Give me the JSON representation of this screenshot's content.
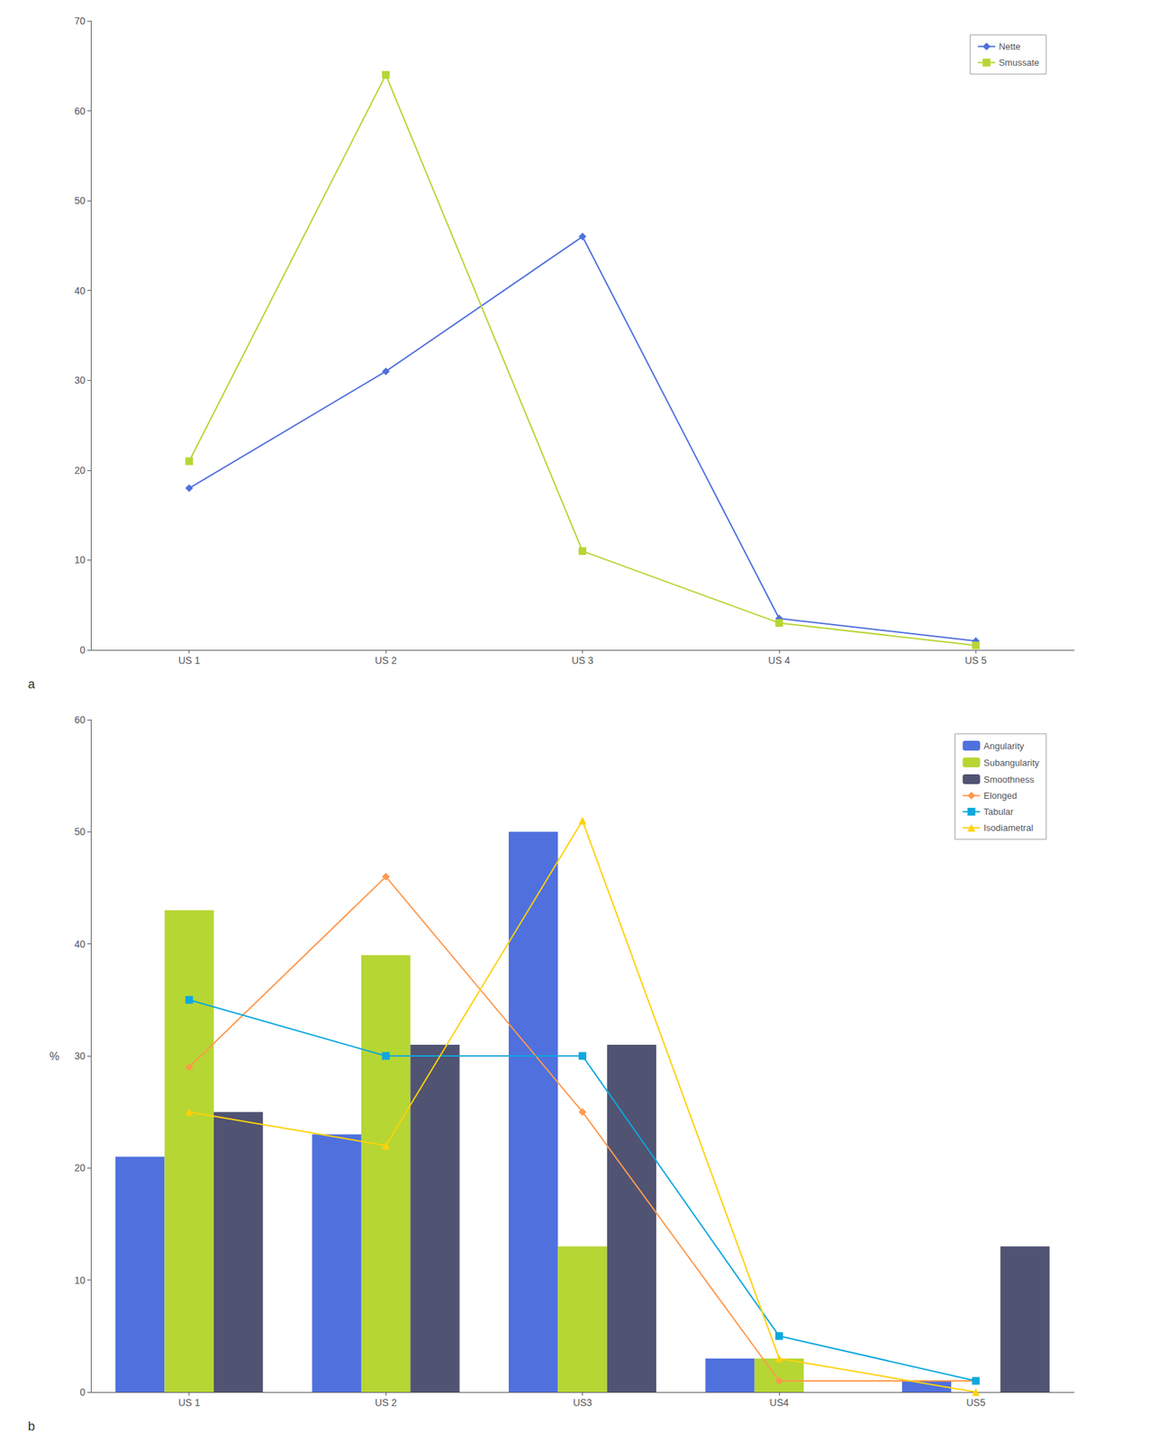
{
  "chart_data": [
    {
      "type": "line",
      "categories": [
        "US 1",
        "US 2",
        "US 3",
        "US 4",
        "US 5"
      ],
      "series": [
        {
          "name": "Nette",
          "values": [
            18,
            31,
            46,
            3.5,
            1
          ],
          "marker": "diamond"
        },
        {
          "name": "Smussate",
          "values": [
            21,
            64,
            11,
            3,
            0.5
          ],
          "marker": "square"
        }
      ],
      "ylim": [
        0,
        70
      ],
      "yticks": [
        0,
        10,
        20,
        30,
        40,
        50,
        60,
        70
      ],
      "grid": false,
      "legend": "upper right",
      "annotations": [
        "a"
      ]
    },
    {
      "type": "bar",
      "categories": [
        "US 1",
        "US 2",
        "US3",
        "US4",
        "US5"
      ],
      "series": [
        {
          "name": "Angularity",
          "type": "bar",
          "values": [
            21,
            23,
            50,
            3,
            1
          ]
        },
        {
          "name": "Subangularity",
          "type": "bar",
          "values": [
            43,
            39,
            13,
            3,
            0
          ]
        },
        {
          "name": "Smoothness",
          "type": "bar",
          "values": [
            25,
            31,
            31,
            0,
            13
          ]
        },
        {
          "name": "Elonged",
          "type": "line",
          "values": [
            29,
            46,
            25,
            1,
            1
          ],
          "marker": "diamond"
        },
        {
          "name": "Tabular",
          "type": "line",
          "values": [
            35,
            30,
            30,
            5,
            1
          ],
          "marker": "square"
        },
        {
          "name": "Isodiametral",
          "type": "line",
          "values": [
            25,
            22,
            51,
            3,
            0
          ],
          "marker": "triangle"
        }
      ],
      "ylabel": "%",
      "ylim": [
        0,
        60
      ],
      "yticks": [
        0,
        10,
        20,
        30,
        40,
        50,
        60
      ],
      "grid": false,
      "legend": "upper right",
      "annotations": [
        "b"
      ]
    }
  ]
}
